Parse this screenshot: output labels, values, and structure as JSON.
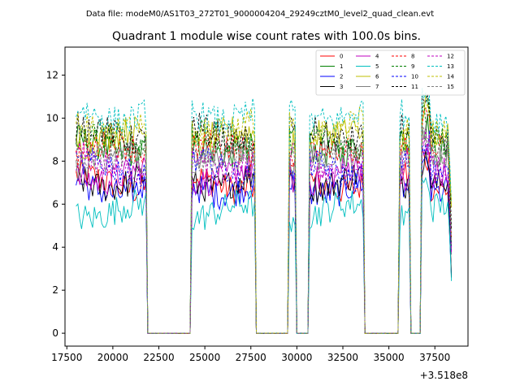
{
  "suptitle": "Data file: modeM0/AS1T03_272T01_9000004204_29249cztM0_level2_quad_clean.evt",
  "chart_data": {
    "type": "line",
    "title": "Quadrant 1 module wise count rates with 100.0s bins.",
    "xlabel": "",
    "ylabel": "",
    "x_offset_label": "+3.518e8",
    "xlim": [
      17400,
      39300
    ],
    "ylim": [
      -0.6,
      13.3
    ],
    "x_ticks": [
      17500,
      20000,
      22500,
      25000,
      27500,
      30000,
      32500,
      35000,
      37500
    ],
    "x_tick_labels": [
      "17500",
      "20000",
      "22500",
      "25000",
      "27500",
      "30000",
      "32500",
      "35000",
      "37500"
    ],
    "y_ticks": [
      0,
      2,
      4,
      6,
      8,
      10,
      12
    ],
    "y_tick_labels": [
      "0",
      "2",
      "4",
      "6",
      "8",
      "10",
      "12"
    ],
    "grid": false,
    "legend_position": "top-right",
    "legend_columns": 4,
    "on_intervals": [
      [
        18000,
        21800
      ],
      [
        24300,
        27700
      ],
      [
        29600,
        29900
      ],
      [
        30700,
        33600
      ],
      [
        35600,
        36100
      ],
      [
        36800,
        38400
      ]
    ],
    "series": [
      {
        "name": "0",
        "color": "#ff0000",
        "dash": "solid",
        "level": 7.0
      },
      {
        "name": "1",
        "color": "#008000",
        "dash": "solid",
        "level": 8.7
      },
      {
        "name": "2",
        "color": "#0000ff",
        "dash": "solid",
        "level": 6.8
      },
      {
        "name": "3",
        "color": "#000000",
        "dash": "solid",
        "level": 7.1
      },
      {
        "name": "4",
        "color": "#bf00bf",
        "dash": "solid",
        "level": 7.4
      },
      {
        "name": "5",
        "color": "#00bfbf",
        "dash": "solid",
        "level": 5.7
      },
      {
        "name": "6",
        "color": "#bfbf00",
        "dash": "solid",
        "level": 9.1
      },
      {
        "name": "7",
        "color": "#808080",
        "dash": "solid",
        "level": 8.0
      },
      {
        "name": "8",
        "color": "#ff0000",
        "dash": "dashed",
        "level": 8.5
      },
      {
        "name": "9",
        "color": "#008000",
        "dash": "dashed",
        "level": 8.9
      },
      {
        "name": "10",
        "color": "#0000ff",
        "dash": "dashed",
        "level": 7.6
      },
      {
        "name": "11",
        "color": "#000000",
        "dash": "dashed",
        "level": 9.3
      },
      {
        "name": "12",
        "color": "#bf00bf",
        "dash": "dashed",
        "level": 7.9
      },
      {
        "name": "13",
        "color": "#00bfbf",
        "dash": "dashed",
        "level": 10.2
      },
      {
        "name": "14",
        "color": "#bfbf00",
        "dash": "dashed",
        "level": 9.6
      },
      {
        "name": "15",
        "color": "#808080",
        "dash": "dashed",
        "level": 8.3
      }
    ]
  }
}
